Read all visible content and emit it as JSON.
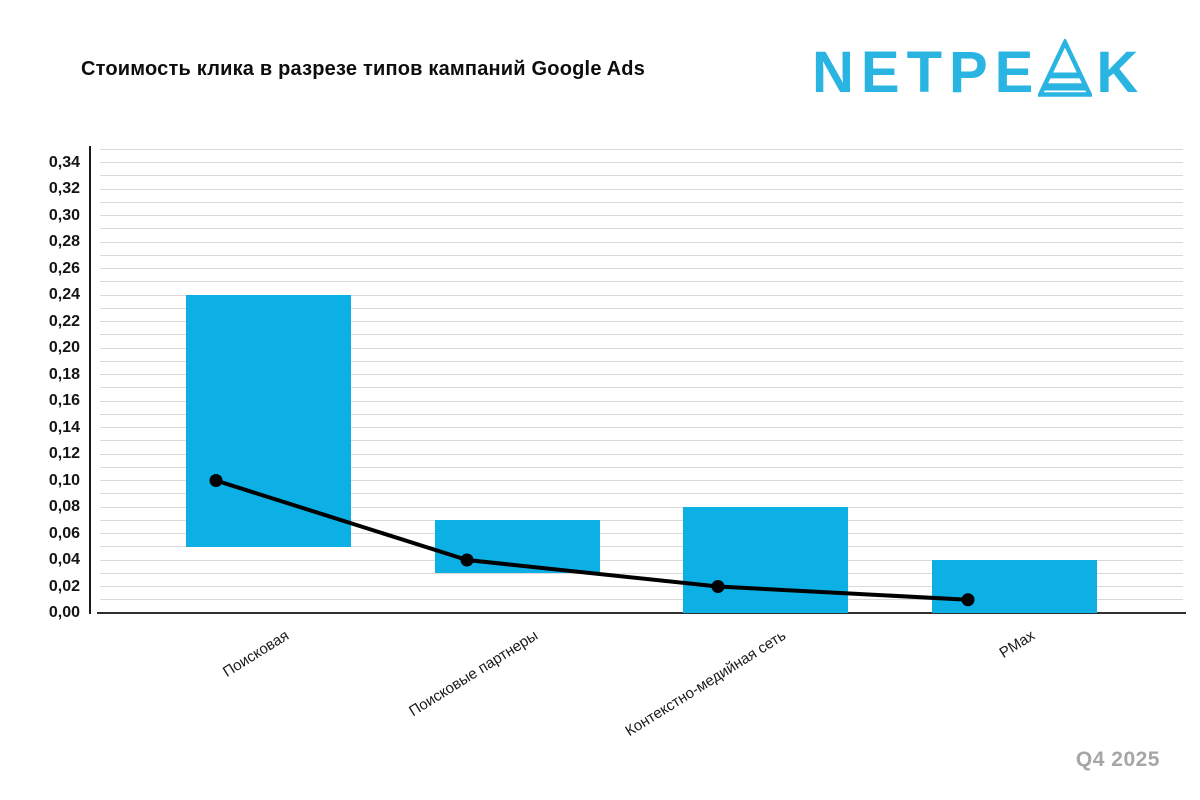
{
  "header": {
    "title": "Стоимость клика в разрезе типов кампаний Google Ads",
    "logo": {
      "text_before_a": "NETPE",
      "text_after_a": "K",
      "color": "#29b4e2"
    }
  },
  "footer": {
    "period": "Q4 2025"
  },
  "chart_data": {
    "type": "bar",
    "subtype": "floating-range-bars-with-line-overlay",
    "title": "Стоимость клика в разрезе типов кампаний Google Ads",
    "categories": [
      "Поисковая",
      "Поисковые партнеры",
      "Контекстно-медийная сеть",
      "PMax"
    ],
    "series": [
      {
        "type": "bar",
        "role": "cpc-range",
        "low": [
          0.05,
          0.03,
          0.0,
          0.0
        ],
        "high": [
          0.24,
          0.07,
          0.08,
          0.04
        ]
      },
      {
        "type": "line",
        "role": "cpc",
        "values": [
          0.1,
          0.04,
          0.02,
          0.01
        ]
      }
    ],
    "xlabel": "",
    "ylabel": "",
    "ylim": [
      0,
      0.35
    ],
    "ytick_label_min": 0.0,
    "ytick_label_max": 0.34,
    "ytick_label_step": 0.02,
    "grid_step": 0.01,
    "grid": true,
    "legend": false,
    "decimal_separator": ",",
    "colors": {
      "bar": "#0cb0e5",
      "line": "#000000",
      "marker": "#000000",
      "grid": "#d9d9d9",
      "axis": "#2f2f2f"
    }
  }
}
